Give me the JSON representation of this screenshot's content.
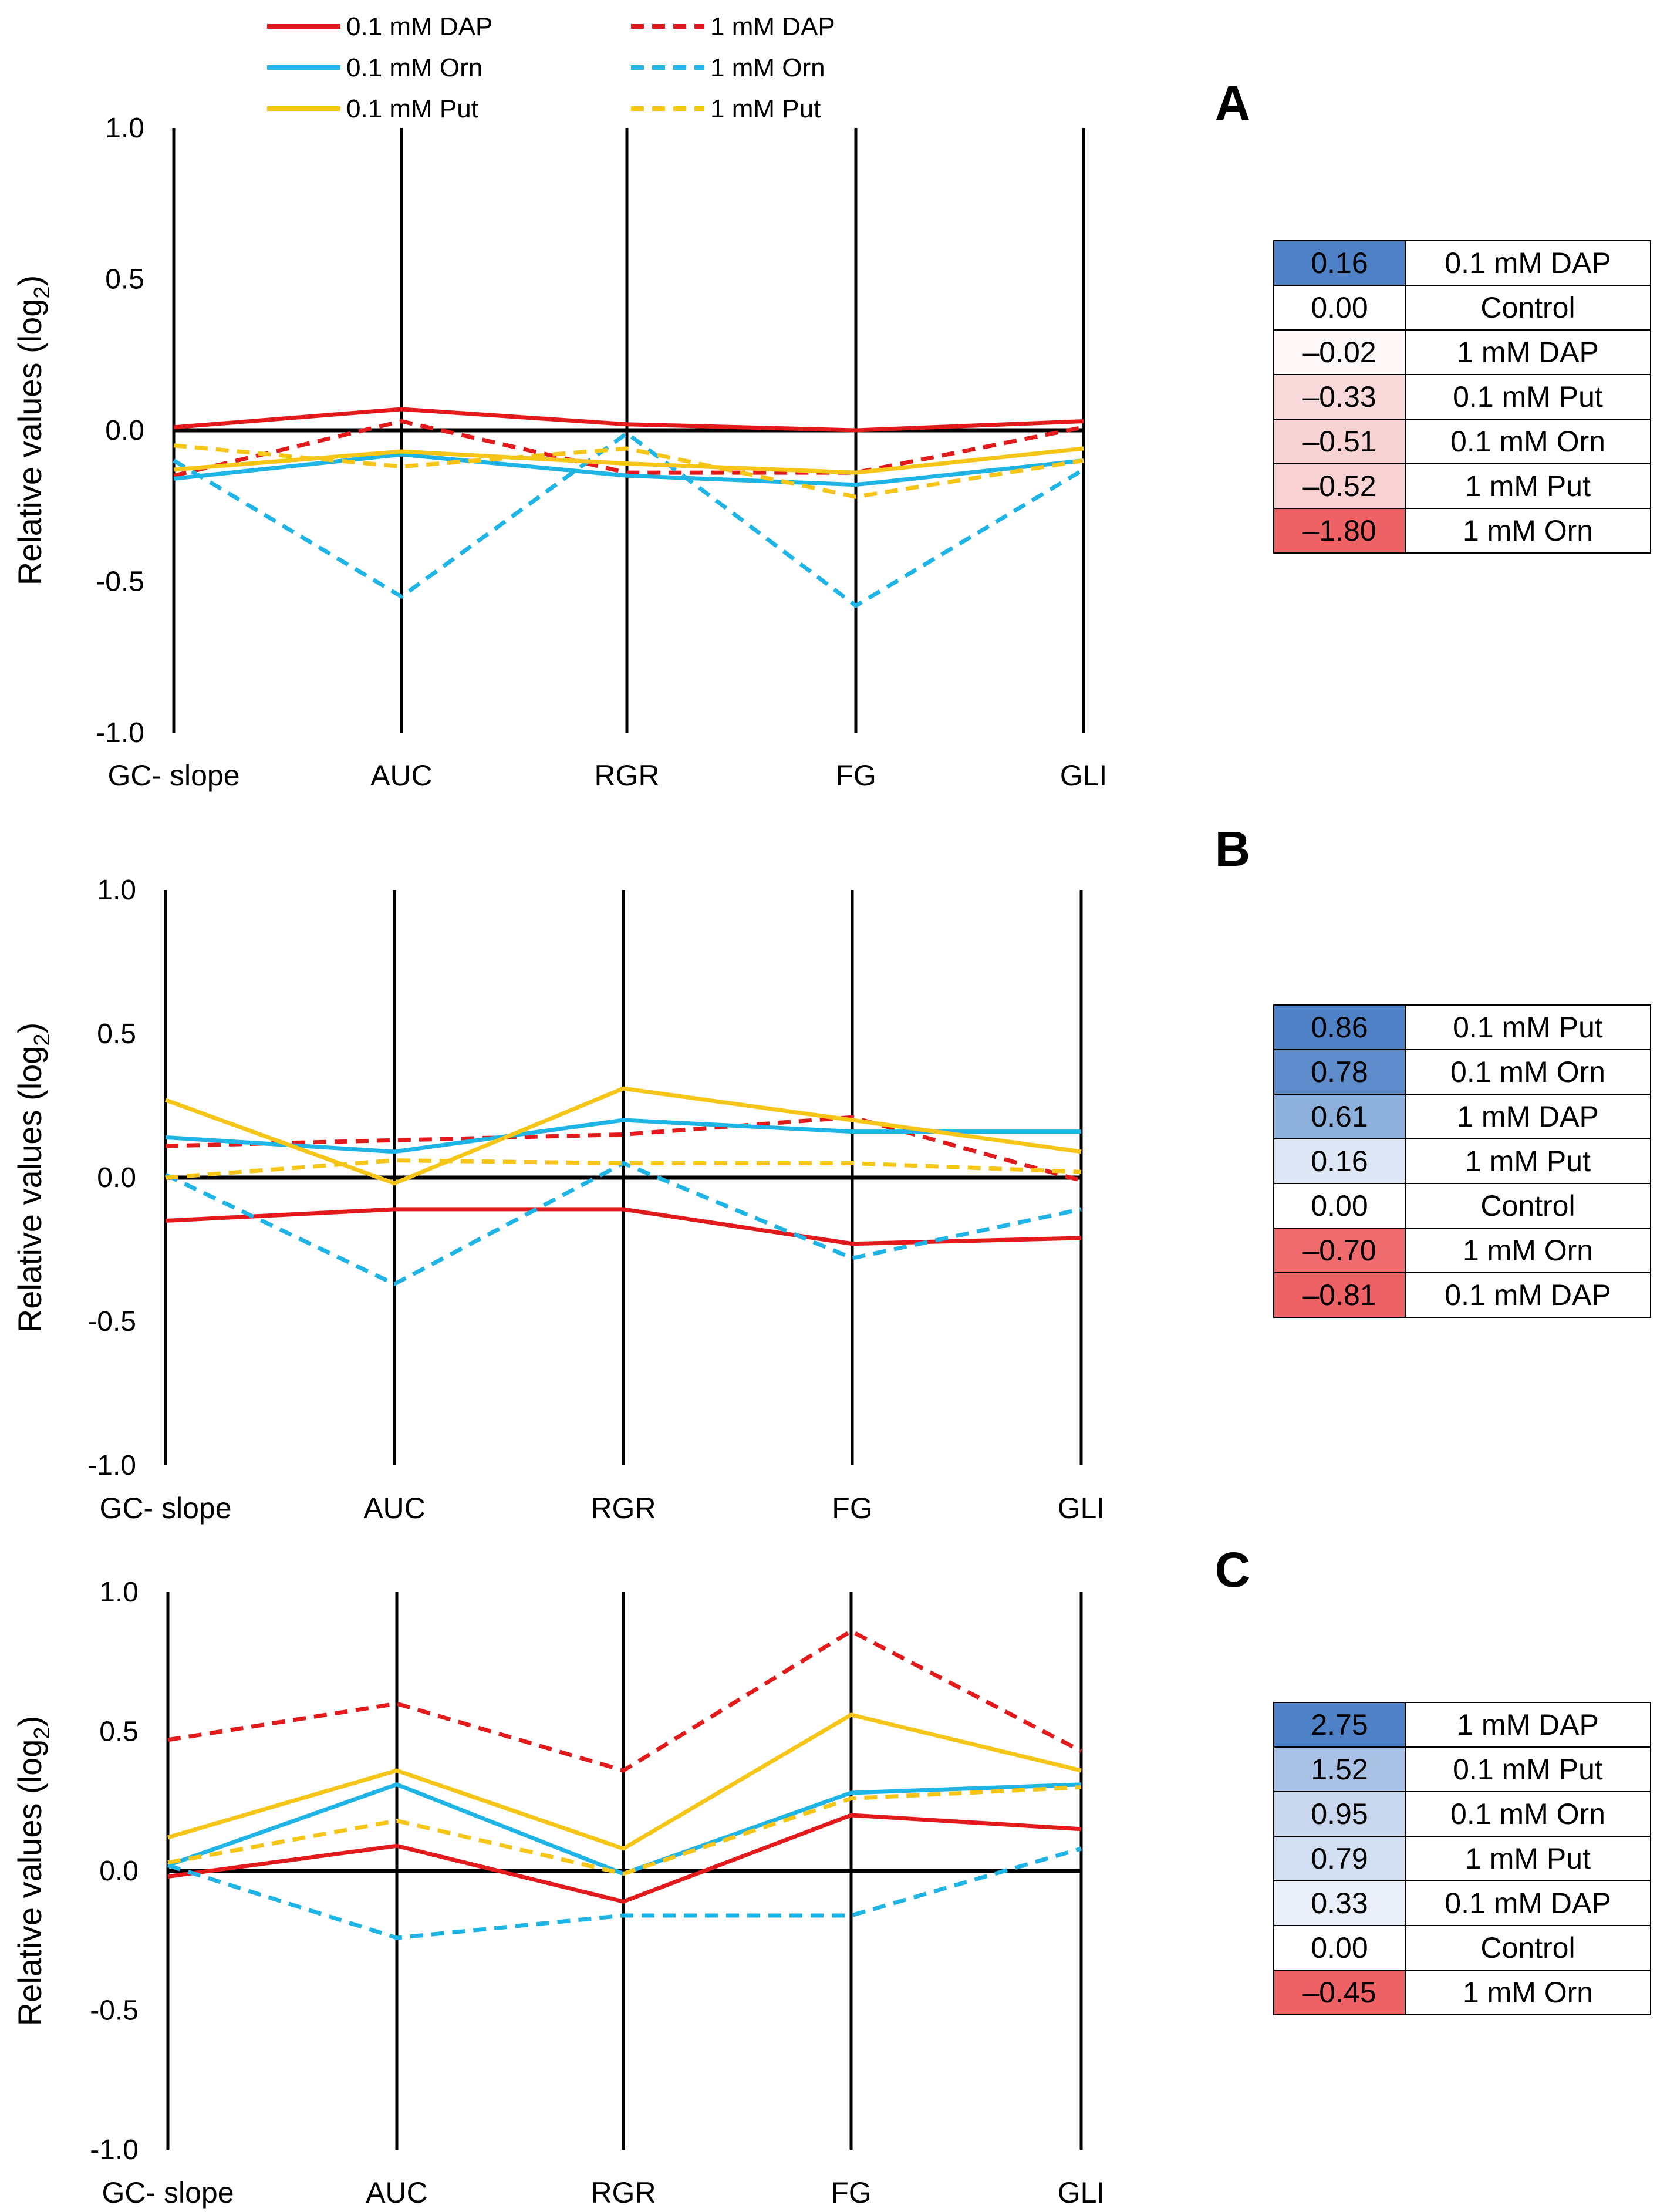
{
  "legend": [
    {
      "name": "0.1 mM DAP",
      "color": "#e31a1c",
      "dash": "solid"
    },
    {
      "name": "1 mM DAP",
      "color": "#e31a1c",
      "dash": "dashed"
    },
    {
      "name": "0.1 mM Orn",
      "color": "#1fb4e6",
      "dash": "solid"
    },
    {
      "name": "1 mM Orn",
      "color": "#1fb4e6",
      "dash": "dashed"
    },
    {
      "name": "0.1 mM Put",
      "color": "#f5c518",
      "dash": "solid"
    },
    {
      "name": "1 mM Put",
      "color": "#f5c518",
      "dash": "dashed"
    }
  ],
  "chart_data": [
    {
      "type": "line",
      "panel": "A",
      "ylabel": "Relative values (log",
      "ylabel_sub": "2",
      "ylabel_end": ")",
      "ylim": [
        -1.0,
        1.0
      ],
      "yticks": [
        "1.0",
        "0.5",
        "0.0",
        "-0.5",
        "-1.0"
      ],
      "ytick_values": [
        1.0,
        0.5,
        0.0,
        -0.5,
        -1.0
      ],
      "categories": [
        "GC- slope",
        "AUC",
        "RGR",
        "FG",
        "GLI"
      ],
      "series": [
        {
          "name": "0.1 mM DAP",
          "values": [
            0.01,
            0.07,
            0.02,
            0.0,
            0.03
          ]
        },
        {
          "name": "1 mM DAP",
          "values": [
            -0.15,
            0.03,
            -0.14,
            -0.14,
            0.01
          ]
        },
        {
          "name": "0.1 mM Orn",
          "values": [
            -0.16,
            -0.08,
            -0.15,
            -0.18,
            -0.1
          ]
        },
        {
          "name": "1 mM Orn",
          "values": [
            -0.1,
            -0.55,
            -0.01,
            -0.58,
            -0.13
          ]
        },
        {
          "name": "0.1 mM Put",
          "values": [
            -0.13,
            -0.07,
            -0.11,
            -0.14,
            -0.06
          ]
        },
        {
          "name": "1 mM Put",
          "values": [
            -0.05,
            -0.12,
            -0.06,
            -0.22,
            -0.1
          ]
        }
      ],
      "table": [
        {
          "value": "0.16",
          "label": "0.1 mM DAP",
          "color": "#4f81c7"
        },
        {
          "value": "0.00",
          "label": "Control",
          "color": "#ffffff"
        },
        {
          "value": "–0.02",
          "label": "1 mM DAP",
          "color": "#fdf7f8"
        },
        {
          "value": "–0.33",
          "label": "0.1 mM Put",
          "color": "#f9d9da"
        },
        {
          "value": "–0.51",
          "label": "0.1 mM Orn",
          "color": "#f8d3d4"
        },
        {
          "value": "–0.52",
          "label": "1 mM Put",
          "color": "#f8d2d3"
        },
        {
          "value": "–1.80",
          "label": "1 mM Orn",
          "color": "#ee6164"
        }
      ]
    },
    {
      "type": "line",
      "panel": "B",
      "ylabel": "Relative values (log",
      "ylabel_sub": "2",
      "ylabel_end": ")",
      "ylim": [
        -1.0,
        1.0
      ],
      "yticks": [
        "1.0",
        "0.5",
        "0.0",
        "-0.5",
        "-1.0"
      ],
      "ytick_values": [
        1.0,
        0.5,
        0.0,
        -0.5,
        -1.0
      ],
      "categories": [
        "GC- slope",
        "AUC",
        "RGR",
        "FG",
        "GLI"
      ],
      "series": [
        {
          "name": "0.1 mM DAP",
          "values": [
            -0.15,
            -0.11,
            -0.11,
            -0.23,
            -0.21
          ]
        },
        {
          "name": "1 mM DAP",
          "values": [
            0.11,
            0.13,
            0.15,
            0.21,
            -0.01
          ]
        },
        {
          "name": "0.1 mM Orn",
          "values": [
            0.14,
            0.09,
            0.2,
            0.16,
            0.16
          ]
        },
        {
          "name": "1 mM Orn",
          "values": [
            0.01,
            -0.37,
            0.05,
            -0.28,
            -0.11
          ]
        },
        {
          "name": "0.1 mM Put",
          "values": [
            0.27,
            -0.02,
            0.31,
            0.2,
            0.09
          ]
        },
        {
          "name": "1 mM Put",
          "values": [
            0.0,
            0.06,
            0.05,
            0.05,
            0.02
          ]
        }
      ],
      "table": [
        {
          "value": "0.86",
          "label": "0.1 mM Put",
          "color": "#4f81c7"
        },
        {
          "value": "0.78",
          "label": "0.1 mM Orn",
          "color": "#5f8dcc"
        },
        {
          "value": "0.61",
          "label": "1 mM DAP",
          "color": "#8eb0dc"
        },
        {
          "value": "0.16",
          "label": "1 mM Put",
          "color": "#dde7f5"
        },
        {
          "value": "0.00",
          "label": "Control",
          "color": "#ffffff"
        },
        {
          "value": "–0.70",
          "label": "1 mM Orn",
          "color": "#ef6b6e"
        },
        {
          "value": "–0.81",
          "label": "0.1 mM DAP",
          "color": "#ee6164"
        }
      ]
    },
    {
      "type": "line",
      "panel": "C",
      "ylabel": "Relative values (log",
      "ylabel_sub": "2",
      "ylabel_end": ")",
      "ylim": [
        -1.0,
        1.0
      ],
      "yticks": [
        "1.0",
        "0.5",
        "0.0",
        "-0.5",
        "-1.0"
      ],
      "ytick_values": [
        1.0,
        0.5,
        0.0,
        -0.5,
        -1.0
      ],
      "categories": [
        "GC- slope",
        "AUC",
        "RGR",
        "FG",
        "GLI"
      ],
      "series": [
        {
          "name": "0.1 mM DAP",
          "values": [
            -0.02,
            0.09,
            -0.11,
            0.2,
            0.15
          ]
        },
        {
          "name": "1 mM DAP",
          "values": [
            0.47,
            0.6,
            0.36,
            0.86,
            0.43
          ]
        },
        {
          "name": "0.1 mM Orn",
          "values": [
            0.02,
            0.31,
            -0.01,
            0.28,
            0.31
          ]
        },
        {
          "name": "1 mM Orn",
          "values": [
            0.02,
            -0.24,
            -0.16,
            -0.16,
            0.08
          ]
        },
        {
          "name": "0.1 mM Put",
          "values": [
            0.12,
            0.36,
            0.08,
            0.56,
            0.36
          ]
        },
        {
          "name": "1 mM Put",
          "values": [
            0.03,
            0.18,
            -0.01,
            0.26,
            0.3
          ]
        }
      ],
      "table": [
        {
          "value": "2.75",
          "label": "1 mM DAP",
          "color": "#4f81c7"
        },
        {
          "value": "1.52",
          "label": "0.1 mM Put",
          "color": "#a9c1e4"
        },
        {
          "value": "0.95",
          "label": "0.1 mM Orn",
          "color": "#c9d8ee"
        },
        {
          "value": "0.79",
          "label": "1 mM Put",
          "color": "#d2def1"
        },
        {
          "value": "0.33",
          "label": "0.1 mM DAP",
          "color": "#e8eff8"
        },
        {
          "value": "0.00",
          "label": "Control",
          "color": "#ffffff"
        },
        {
          "value": "–0.45",
          "label": "1 mM Orn",
          "color": "#ee6164"
        }
      ]
    }
  ]
}
